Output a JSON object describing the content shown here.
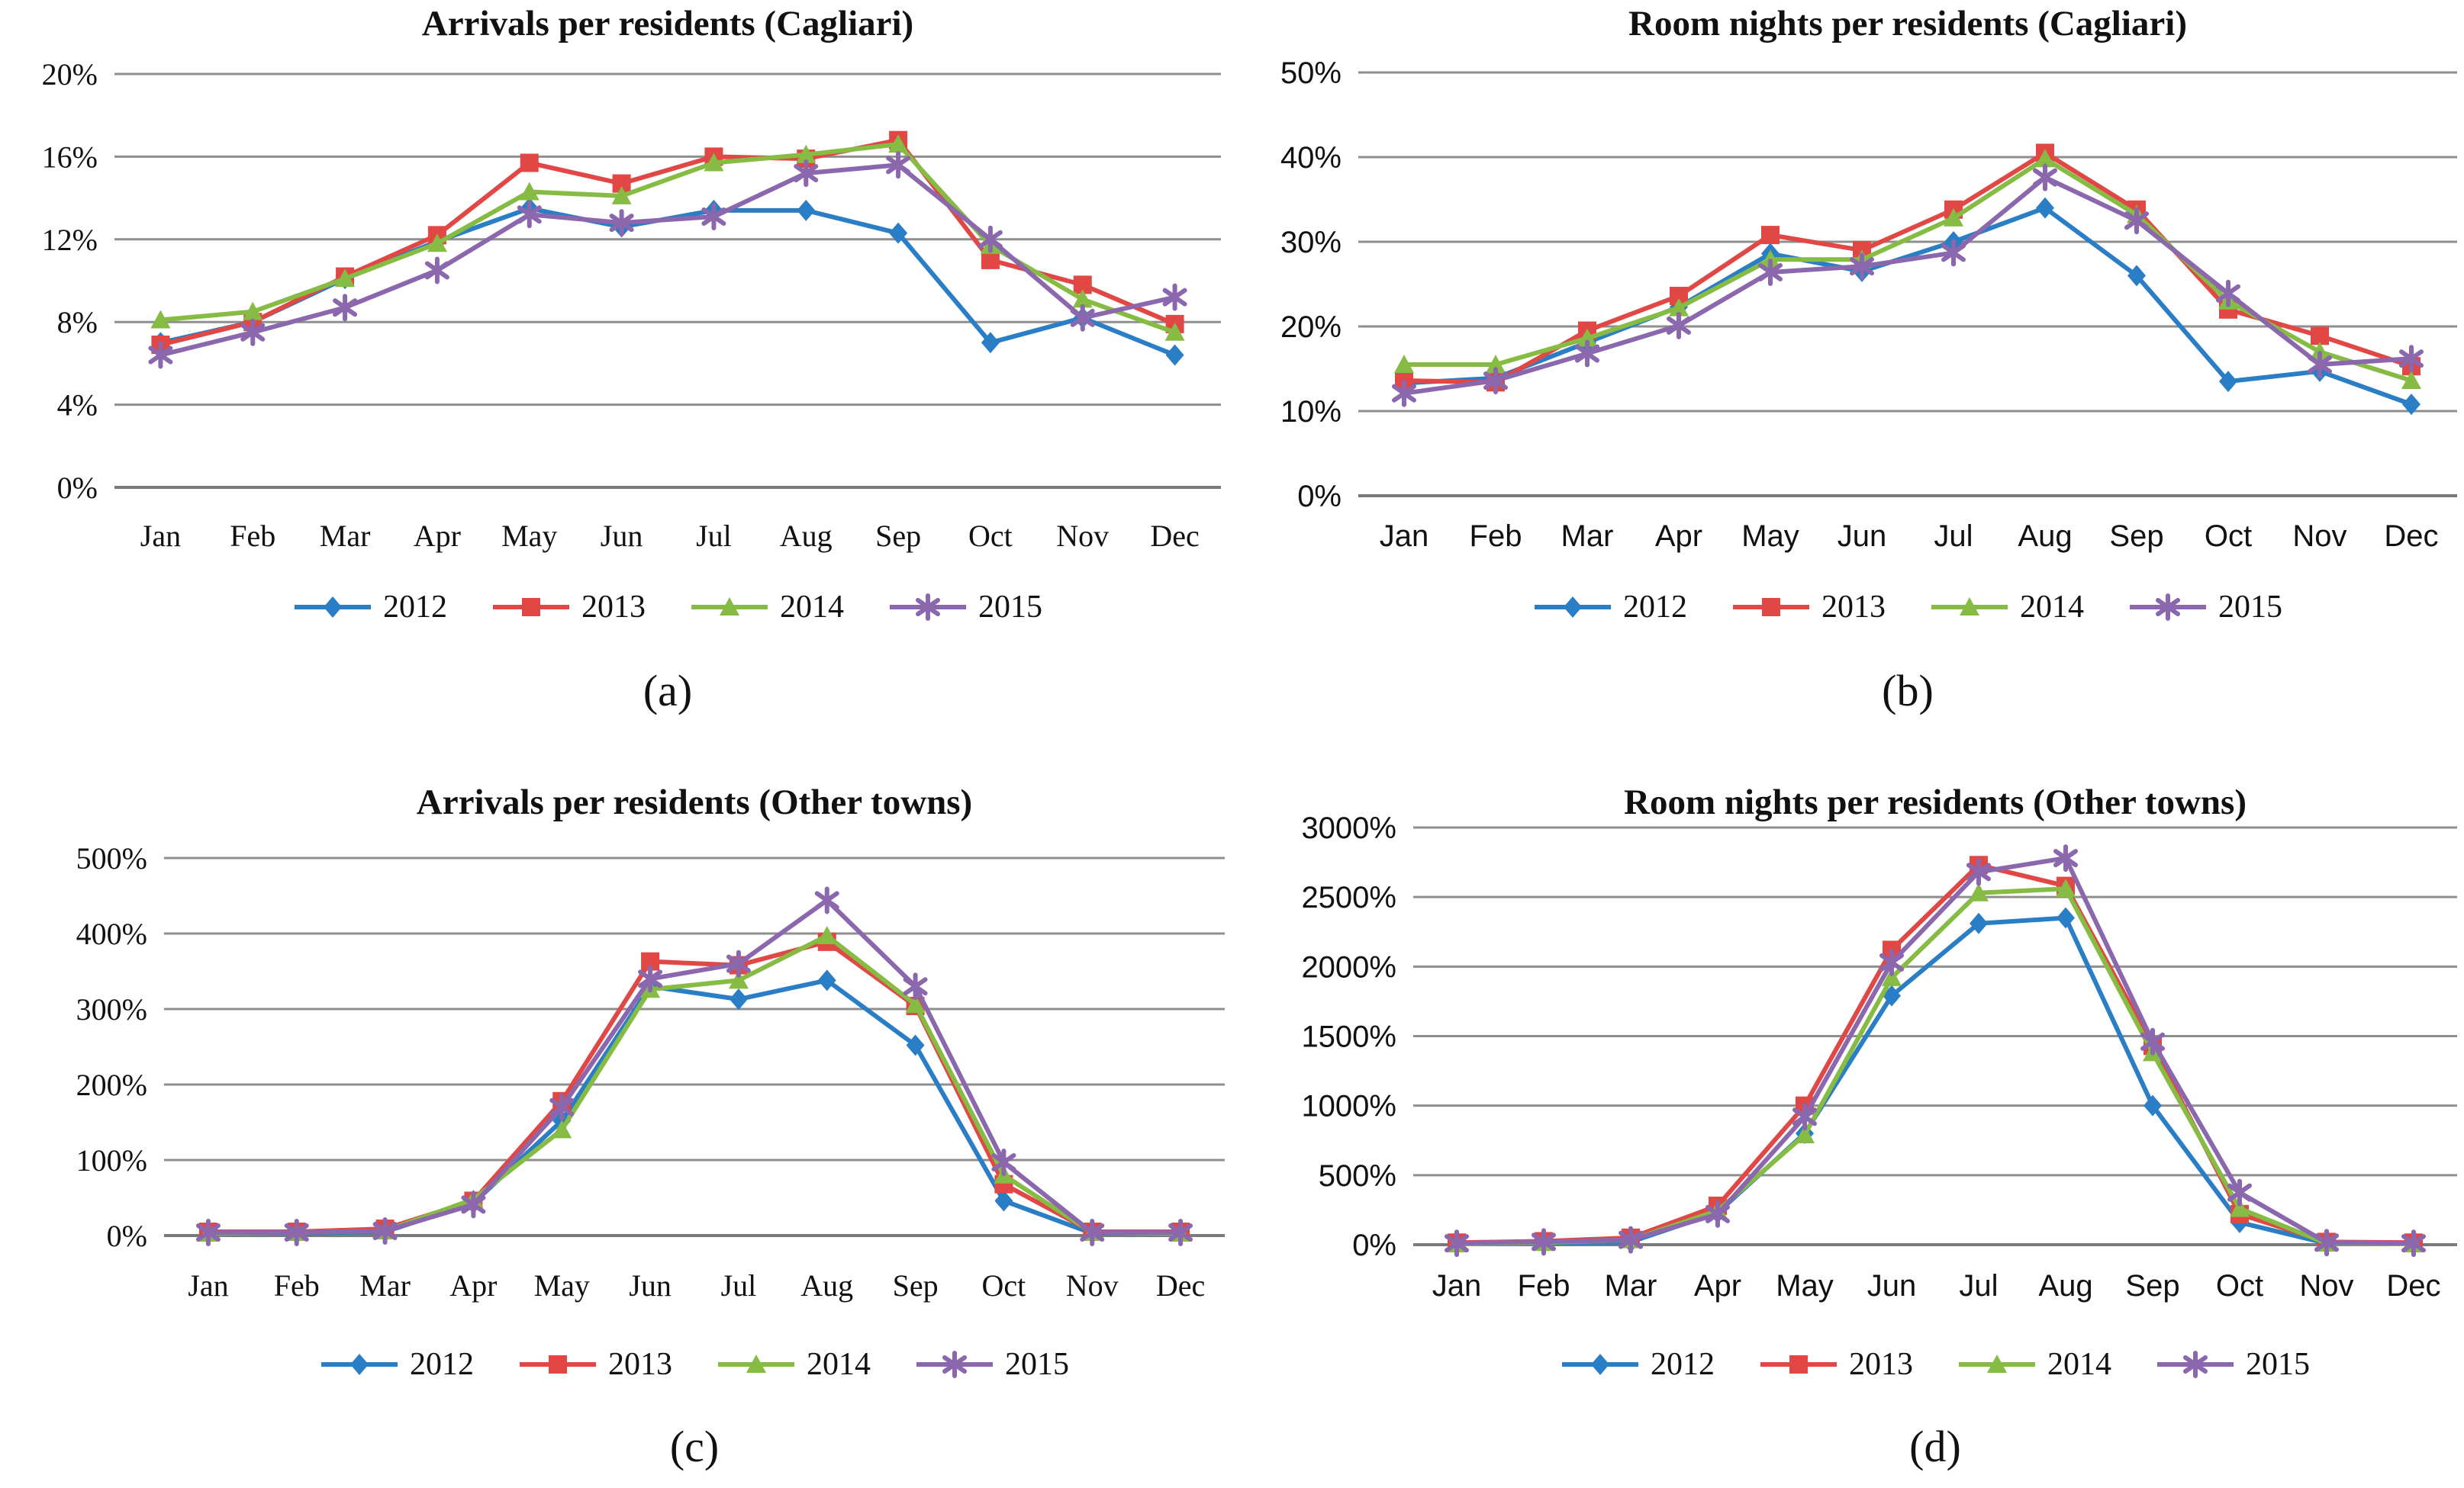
{
  "figure": {
    "background": "#ffffff",
    "months": [
      "Jan",
      "Feb",
      "Mar",
      "Apr",
      "May",
      "Jun",
      "Jul",
      "Aug",
      "Sep",
      "Oct",
      "Nov",
      "Dec"
    ],
    "grid_color": "#8f8f8f",
    "axis_color": "#7a7a7a"
  },
  "series_meta": [
    {
      "name": "2012",
      "color": "#2A7EC5",
      "marker": "diamond"
    },
    {
      "name": "2013",
      "color": "#E04745",
      "marker": "square"
    },
    {
      "name": "2014",
      "color": "#86BC44",
      "marker": "triangle"
    },
    {
      "name": "2015",
      "color": "#8B67AD",
      "marker": "star"
    }
  ],
  "chart_data": [
    {
      "type": "line",
      "title": "Arrivals per residents (Cagliari)",
      "caption": "(a)",
      "xlabel": "",
      "ylabel": "",
      "ylim": [
        0,
        20
      ],
      "ytick_step": 4,
      "ytick_labels": [
        "0%",
        "4%",
        "8%",
        "12%",
        "16%",
        "20%"
      ],
      "tick_font": "serif",
      "grid": true,
      "legend_position": "bottom",
      "categories": [
        "Jan",
        "Feb",
        "Mar",
        "Apr",
        "May",
        "Jun",
        "Jul",
        "Aug",
        "Sep",
        "Oct",
        "Nov",
        "Dec"
      ],
      "series": [
        {
          "name": "2012",
          "values": [
            7.0,
            8.0,
            10.1,
            11.9,
            13.5,
            12.6,
            13.4,
            13.4,
            12.3,
            7.0,
            8.2,
            6.4
          ]
        },
        {
          "name": "2013",
          "values": [
            6.9,
            8.0,
            10.2,
            12.2,
            15.7,
            14.7,
            16.0,
            15.9,
            16.8,
            11.0,
            9.8,
            7.9
          ]
        },
        {
          "name": "2014",
          "values": [
            8.1,
            8.5,
            10.1,
            11.8,
            14.3,
            14.1,
            15.7,
            16.1,
            16.6,
            11.7,
            9.1,
            7.5
          ]
        },
        {
          "name": "2015",
          "values": [
            6.4,
            7.5,
            8.7,
            10.5,
            13.2,
            12.8,
            13.1,
            15.2,
            15.6,
            12.0,
            8.2,
            9.2
          ]
        }
      ]
    },
    {
      "type": "line",
      "title": "Room nights per residents (Cagliari)",
      "caption": "(b)",
      "xlabel": "",
      "ylabel": "",
      "ylim": [
        0,
        50
      ],
      "ytick_step": 10,
      "ytick_labels": [
        "0%",
        "10%",
        "20%",
        "30%",
        "40%",
        "50%"
      ],
      "tick_font": "sans",
      "grid": true,
      "legend_position": "bottom",
      "categories": [
        "Jan",
        "Feb",
        "Mar",
        "Apr",
        "May",
        "Jun",
        "Jul",
        "Aug",
        "Sep",
        "Oct",
        "Nov",
        "Dec"
      ],
      "series": [
        {
          "name": "2012",
          "values": [
            13.3,
            13.9,
            18.1,
            22.3,
            28.6,
            26.5,
            30.0,
            34.0,
            26.0,
            13.5,
            14.7,
            10.8
          ]
        },
        {
          "name": "2013",
          "values": [
            13.6,
            13.4,
            19.5,
            23.6,
            30.8,
            29.0,
            33.8,
            40.5,
            33.8,
            22.0,
            18.9,
            15.3
          ]
        },
        {
          "name": "2014",
          "values": [
            15.5,
            15.5,
            18.6,
            22.2,
            27.9,
            27.9,
            32.8,
            39.8,
            33.2,
            23.0,
            17.0,
            13.6
          ]
        },
        {
          "name": "2015",
          "values": [
            12.1,
            13.6,
            16.8,
            20.1,
            26.4,
            27.1,
            28.7,
            37.6,
            32.5,
            23.9,
            15.5,
            16.2
          ]
        }
      ]
    },
    {
      "type": "line",
      "title": "Arrivals per residents (Other towns)",
      "caption": "(c)",
      "xlabel": "",
      "ylabel": "",
      "ylim": [
        0,
        500
      ],
      "ytick_step": 100,
      "ytick_labels": [
        "0%",
        "100%",
        "200%",
        "300%",
        "400%",
        "500%"
      ],
      "tick_font": "serif",
      "grid": true,
      "legend_position": "bottom",
      "categories": [
        "Jan",
        "Feb",
        "Mar",
        "Apr",
        "May",
        "Jun",
        "Jul",
        "Aug",
        "Sep",
        "Oct",
        "Nov",
        "Dec"
      ],
      "series": [
        {
          "name": "2012",
          "values": [
            3,
            3,
            5,
            43,
            152,
            330,
            313,
            338,
            252,
            46,
            3,
            3
          ]
        },
        {
          "name": "2013",
          "values": [
            5,
            5,
            9,
            46,
            178,
            363,
            358,
            389,
            304,
            68,
            5,
            5
          ]
        },
        {
          "name": "2014",
          "values": [
            3,
            4,
            6,
            48,
            140,
            326,
            338,
            397,
            306,
            80,
            4,
            3
          ]
        },
        {
          "name": "2015",
          "values": [
            4,
            4,
            6,
            41,
            170,
            340,
            360,
            444,
            330,
            97,
            4,
            4
          ]
        }
      ]
    },
    {
      "type": "line",
      "title": "Room nights per residents (Other towns)",
      "caption": "(d)",
      "xlabel": "",
      "ylabel": "",
      "ylim": [
        0,
        3000
      ],
      "ytick_step": 500,
      "ytick_labels": [
        "0%",
        "500%",
        "1000%",
        "1500%",
        "2000%",
        "2500%",
        "3000%"
      ],
      "tick_font": "sans",
      "grid": true,
      "legend_position": "bottom",
      "categories": [
        "Jan",
        "Feb",
        "Mar",
        "Apr",
        "May",
        "Jun",
        "Jul",
        "Aug",
        "Sep",
        "Oct",
        "Nov",
        "Dec"
      ],
      "series": [
        {
          "name": "2012",
          "values": [
            5,
            10,
            20,
            230,
            800,
            1790,
            2310,
            2350,
            1000,
            160,
            10,
            5
          ]
        },
        {
          "name": "2013",
          "values": [
            15,
            25,
            50,
            280,
            1000,
            2120,
            2730,
            2580,
            1430,
            220,
            20,
            15
          ]
        },
        {
          "name": "2014",
          "values": [
            5,
            15,
            35,
            245,
            790,
            1920,
            2530,
            2560,
            1380,
            260,
            10,
            5
          ]
        },
        {
          "name": "2015",
          "values": [
            10,
            20,
            35,
            220,
            920,
            2030,
            2680,
            2780,
            1460,
            375,
            15,
            10
          ]
        }
      ]
    }
  ]
}
